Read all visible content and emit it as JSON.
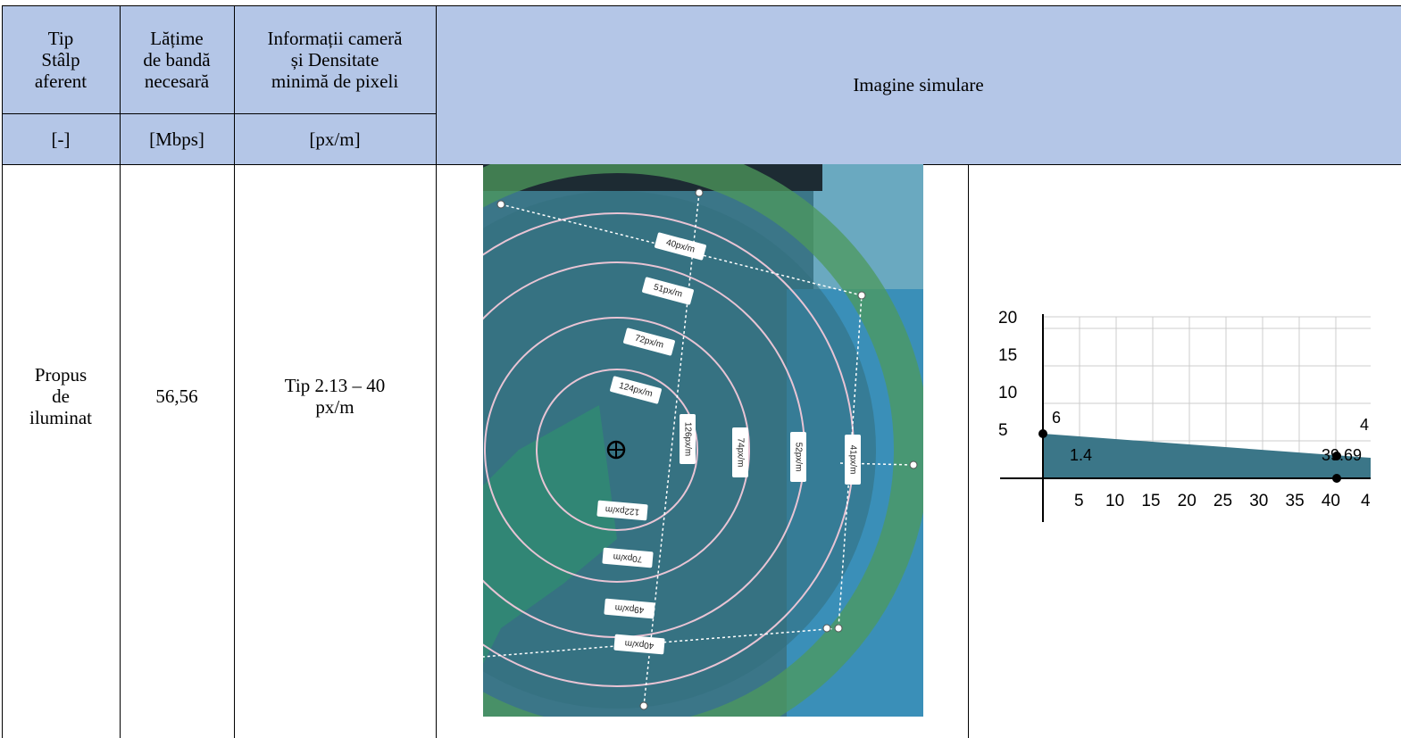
{
  "table": {
    "header": {
      "columns": [
        [
          "Tip",
          "Stâlp",
          "aferent"
        ],
        [
          "Lățime",
          "de bandă",
          "necesară"
        ],
        [
          "Informații cameră",
          "și Densitate",
          "minimă de pixeli"
        ],
        [
          "Imagine simulare"
        ]
      ],
      "units": [
        "[-]",
        "[Mbps]",
        "[px/m]"
      ]
    },
    "rows": [
      [
        [
          "Propus",
          "de",
          "iluminat"
        ],
        [
          "56,56"
        ],
        [
          "Tip 2.13 – 40",
          "px/m"
        ]
      ]
    ]
  },
  "simulation": {
    "labels": [
      "40px/m",
      "51px/m",
      "72px/m",
      "124px/m",
      "126px/m",
      "74px/m",
      "52px/m",
      "41px/m",
      "122px/m",
      "70px/m",
      "49px/m",
      "40px/m"
    ]
  },
  "graph": {
    "yticks": [
      5,
      10,
      15,
      20
    ],
    "xticks": [
      5,
      10,
      15,
      20,
      25,
      30,
      35,
      40
    ],
    "x_cut_label": "4",
    "point_labels": [
      "6",
      "1.4",
      "39.69",
      "4"
    ]
  }
}
